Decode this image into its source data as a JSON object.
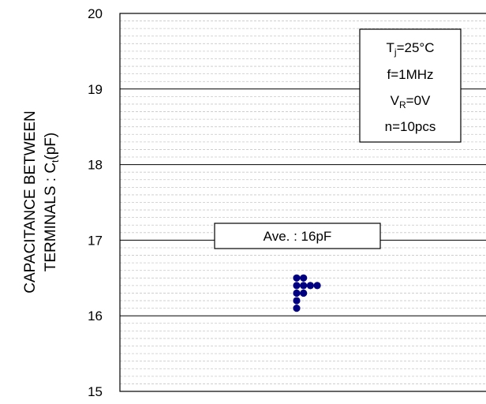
{
  "chart_data": {
    "type": "scatter",
    "ylabel_line1": "CAPACITANCE BETWEEN",
    "ylabel_line2_main": "TERMINALS : C",
    "ylabel_line2_sub": "t",
    "ylabel_line2_unit": "(pF)",
    "ylim": [
      15,
      20
    ],
    "yticks": [
      "15",
      "16",
      "17",
      "18",
      "19",
      "20"
    ],
    "grid": "major and minor horizontal",
    "conditions": {
      "tj_main": "T",
      "tj_sub": "j",
      "tj_value": "=25°C",
      "frequency": "f=1MHz",
      "vr_main": "V",
      "vr_sub": "R",
      "vr_value": "=0V",
      "count": "n=10pcs"
    },
    "average_label": "Ave. : 16pF",
    "points": [
      {
        "col": 0,
        "y": 16.5
      },
      {
        "col": 1,
        "y": 16.5
      },
      {
        "col": 0,
        "y": 16.4
      },
      {
        "col": 1,
        "y": 16.4
      },
      {
        "col": 2,
        "y": 16.4
      },
      {
        "col": 3,
        "y": 16.4
      },
      {
        "col": 0,
        "y": 16.3
      },
      {
        "col": 1,
        "y": 16.3
      },
      {
        "col": 0,
        "y": 16.2
      },
      {
        "col": 0,
        "y": 16.1
      }
    ],
    "point_color": "#000080"
  }
}
